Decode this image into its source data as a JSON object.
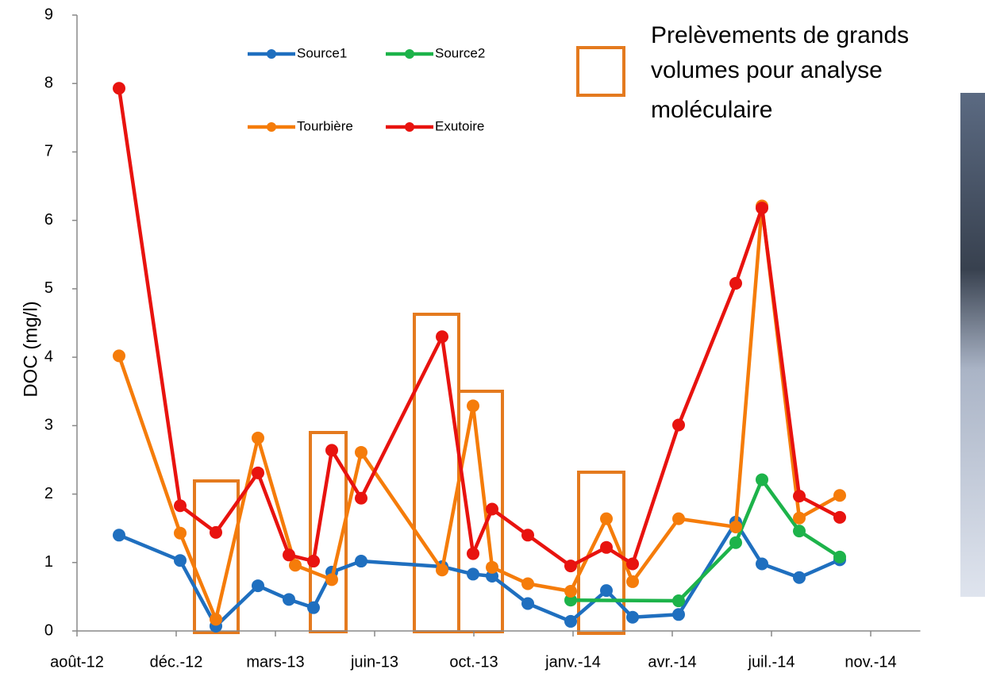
{
  "chart_data": {
    "type": "line",
    "y_label": "DOC (mg/l)",
    "annotation": [
      "Prelèvements de grands",
      "volumes pour analyse",
      "moléculaire"
    ],
    "xlim": [
      0,
      8.5
    ],
    "xticks": [
      {
        "value": 0,
        "label": "août-12"
      },
      {
        "value": 1,
        "label": "déc.-12"
      },
      {
        "value": 2,
        "label": "mars-13"
      },
      {
        "value": 3,
        "label": "juin-13"
      },
      {
        "value": 4,
        "label": "oct.-13"
      },
      {
        "value": 5,
        "label": "janv.-14"
      },
      {
        "value": 6,
        "label": "avr.-14"
      },
      {
        "value": 7,
        "label": "juil.-14"
      },
      {
        "value": 8,
        "label": "nov.-14"
      }
    ],
    "ylim": [
      0,
      9
    ],
    "yticks": [
      0,
      1,
      2,
      3,
      4,
      5,
      6,
      7,
      8,
      9
    ],
    "series": [
      {
        "name": "Source1",
        "color": "#1f6fbf",
        "x": [
          0.424,
          1.04,
          1.4,
          1.824,
          2.136,
          2.384,
          2.568,
          2.864,
          3.68,
          3.992,
          4.184,
          4.544,
          4.976,
          5.336,
          5.6,
          6.064,
          6.64,
          6.904,
          7.28,
          7.688
        ],
        "values": [
          1.4,
          1.03,
          0.07,
          0.66,
          0.46,
          0.34,
          0.86,
          1.02,
          0.94,
          0.83,
          0.8,
          0.4,
          0.14,
          0.59,
          0.2,
          0.24,
          1.59,
          0.98,
          0.78,
          1.04
        ]
      },
      {
        "name": "Source2",
        "color": "#1db34a",
        "x": [
          4.976,
          6.064,
          6.64,
          6.904,
          7.28,
          7.688
        ],
        "values": [
          0.45,
          0.44,
          1.29,
          2.21,
          1.46,
          1.08
        ]
      },
      {
        "name": "Tourbière",
        "color": "#f57c0a",
        "x": [
          0.424,
          1.04,
          1.4,
          1.824,
          2.2,
          2.568,
          2.864,
          3.68,
          3.992,
          4.184,
          4.544,
          4.976,
          5.336,
          5.6,
          6.064,
          6.64,
          6.904,
          7.28,
          7.688
        ],
        "values": [
          4.02,
          1.43,
          0.17,
          2.82,
          0.96,
          0.75,
          2.61,
          0.89,
          3.29,
          0.93,
          0.69,
          0.58,
          1.64,
          0.72,
          1.64,
          1.52,
          6.21,
          1.65,
          1.98
        ]
      },
      {
        "name": "Exutoire",
        "color": "#e8130f",
        "x": [
          0.424,
          1.04,
          1.4,
          1.824,
          2.136,
          2.384,
          2.568,
          2.864,
          3.68,
          3.992,
          4.184,
          4.544,
          4.976,
          5.336,
          5.6,
          6.064,
          6.64,
          6.904,
          7.28,
          7.688
        ],
        "values": [
          7.93,
          1.83,
          1.44,
          2.31,
          1.11,
          1.02,
          2.64,
          1.94,
          4.3,
          1.13,
          1.78,
          1.4,
          0.95,
          1.22,
          0.98,
          3.01,
          5.08,
          6.18,
          1.97,
          1.66
        ]
      }
    ]
  }
}
